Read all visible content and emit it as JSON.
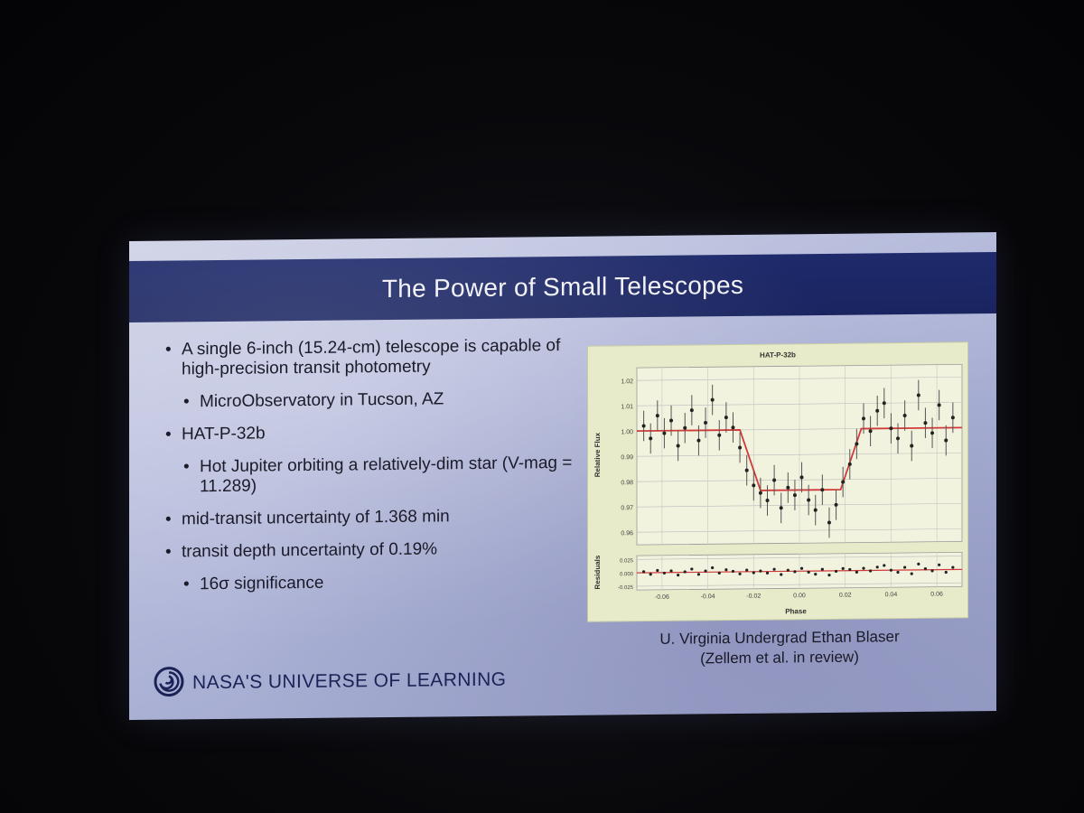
{
  "slide": {
    "title": "The Power of Small Telescopes",
    "bullets": [
      {
        "text": "A single 6-inch (15.24-cm) telescope is capable of high-precision transit photometry",
        "level": 1
      },
      {
        "text": "MicroObservatory in Tucson, AZ",
        "level": 2
      },
      {
        "text": "HAT-P-32b",
        "level": 1
      },
      {
        "text": "Hot Jupiter orbiting a relatively-dim star (V-mag = 11.289)",
        "level": 2
      },
      {
        "text": "mid-transit uncertainty of 1.368 min",
        "level": 1
      },
      {
        "text": "transit depth uncertainty of 0.19%",
        "level": 1
      },
      {
        "text": "16σ significance",
        "level": 2
      }
    ],
    "caption_line1": "U. Virginia Undergrad Ethan Blaser",
    "caption_line2": "(Zellem et al. in review)",
    "brand": "NASA'S UNIVERSE OF LEARNING"
  },
  "colors": {
    "title_bar": "#1e2a6b",
    "figure_bg": "#e7ebc9",
    "model_line": "#d23a3a",
    "data_points": "#222222"
  },
  "chart_data": {
    "type": "scatter",
    "title": "HAT-P-32b",
    "top_panel": {
      "ylabel": "Relative Flux",
      "yticks": [
        0.96,
        0.97,
        0.98,
        0.99,
        1.0,
        1.01,
        1.02
      ],
      "ylim": [
        0.955,
        1.025
      ],
      "model": {
        "baseline": 1.0,
        "depth": 0.024,
        "ingress_start": -0.026,
        "full_start": -0.017,
        "full_end": 0.018,
        "egress_end": 0.027
      },
      "x": [
        -0.068,
        -0.065,
        -0.062,
        -0.059,
        -0.056,
        -0.053,
        -0.05,
        -0.047,
        -0.044,
        -0.041,
        -0.038,
        -0.035,
        -0.032,
        -0.029,
        -0.026,
        -0.023,
        -0.02,
        -0.017,
        -0.014,
        -0.011,
        -0.008,
        -0.005,
        -0.002,
        0.001,
        0.004,
        0.007,
        0.01,
        0.013,
        0.016,
        0.019,
        0.022,
        0.025,
        0.028,
        0.031,
        0.034,
        0.037,
        0.04,
        0.043,
        0.046,
        0.049,
        0.052,
        0.055,
        0.058,
        0.061,
        0.064,
        0.067
      ],
      "y": [
        1.002,
        0.997,
        1.006,
        0.999,
        1.004,
        0.994,
        1.001,
        1.008,
        0.996,
        1.003,
        1.012,
        0.998,
        1.005,
        1.001,
        0.993,
        0.984,
        0.978,
        0.975,
        0.972,
        0.98,
        0.969,
        0.977,
        0.974,
        0.981,
        0.972,
        0.968,
        0.976,
        0.963,
        0.97,
        0.979,
        0.986,
        0.994,
        1.004,
        0.999,
        1.007,
        1.01,
        1.0,
        0.996,
        1.005,
        0.993,
        1.013,
        1.002,
        0.998,
        1.009,
        0.995,
        1.004
      ],
      "errors": 0.006
    },
    "bottom_panel": {
      "ylabel": "Residuals",
      "yticks": [
        0.025,
        0.0,
        -0.025
      ],
      "ylim": [
        -0.032,
        0.032
      ],
      "residuals": [
        0.002,
        -0.003,
        0.004,
        -0.001,
        0.003,
        -0.005,
        0.001,
        0.006,
        -0.004,
        0.002,
        0.008,
        -0.002,
        0.004,
        0.001,
        -0.004,
        0.003,
        -0.002,
        0.001,
        -0.003,
        0.004,
        -0.006,
        0.002,
        -0.001,
        0.005,
        -0.002,
        -0.006,
        0.003,
        -0.008,
        -0.001,
        0.004,
        0.002,
        -0.003,
        0.004,
        -0.001,
        0.006,
        0.009,
        0.0,
        -0.004,
        0.005,
        -0.007,
        0.011,
        0.002,
        -0.002,
        0.009,
        -0.005,
        0.004
      ]
    },
    "xlabel": "Phase",
    "xticks": [
      -0.06,
      -0.04,
      -0.02,
      0.0,
      0.02,
      0.04,
      0.06
    ],
    "xlim": [
      -0.071,
      0.071
    ]
  }
}
